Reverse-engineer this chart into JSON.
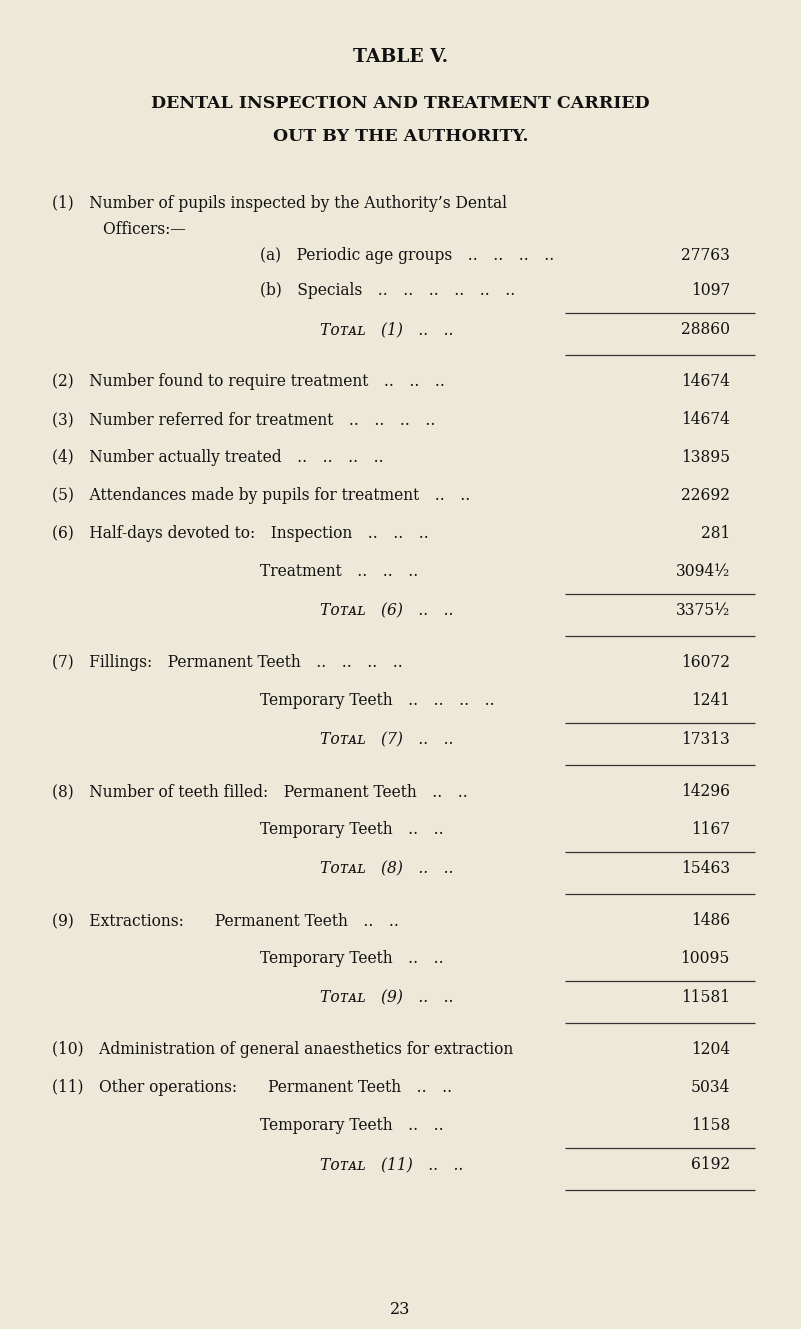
{
  "bg_color": "#ede8d8",
  "title1": "TABLE V.",
  "title2": "DENTAL INSPECTION AND TREATMENT CARRIED",
  "title3": "OUT BY THE AUTHORITY.",
  "page_number": "23",
  "rows": [
    {
      "type": "text2",
      "label": "(1) Number of pupils inspected by the Authority’s Dental",
      "value": "",
      "line_before": false,
      "line_after": false
    },
    {
      "type": "text2b",
      "label": "  Officers:—",
      "value": "",
      "line_before": false,
      "line_after": false
    },
    {
      "type": "text3",
      "label": "(a) Periodic age groups .. .. .. ..",
      "value": "27763",
      "line_before": false,
      "line_after": false
    },
    {
      "type": "text3",
      "label": "(b) Specials .. .. .. .. .. ..",
      "value": "1097",
      "line_before": false,
      "line_after": true
    },
    {
      "type": "total",
      "label": "Tᴏᴛᴀʟ (1) .. ..",
      "value": "28860",
      "line_before": false,
      "line_after": true
    },
    {
      "type": "text1",
      "label": "(2) Number found to require treatment .. .. ..",
      "value": "14674",
      "line_before": false,
      "line_after": false
    },
    {
      "type": "text1",
      "label": "(3) Number referred for treatment .. .. .. ..",
      "value": "14674",
      "line_before": false,
      "line_after": false
    },
    {
      "type": "text1",
      "label": "(4) Number actually treated .. .. .. ..",
      "value": "13895",
      "line_before": false,
      "line_after": false
    },
    {
      "type": "text1",
      "label": "(5) Attendances made by pupils for treatment .. ..",
      "value": "22692",
      "line_before": false,
      "line_after": false
    },
    {
      "type": "text1",
      "label": "(6) Half-days devoted to: Inspection .. .. ..",
      "value": "281",
      "line_before": false,
      "line_after": false
    },
    {
      "type": "text3",
      "label": "Treatment .. .. ..",
      "value": "3094½",
      "line_before": false,
      "line_after": true
    },
    {
      "type": "total",
      "label": "Tᴏᴛᴀʟ (6) .. ..",
      "value": "3375½",
      "line_before": false,
      "line_after": true
    },
    {
      "type": "text1",
      "label": "(7) Fillings: Permanent Teeth .. .. .. ..",
      "value": "16072",
      "line_before": false,
      "line_after": false
    },
    {
      "type": "text3",
      "label": "Temporary Teeth .. .. .. ..",
      "value": "1241",
      "line_before": false,
      "line_after": true
    },
    {
      "type": "total",
      "label": "Tᴏᴛᴀʟ (7) .. ..",
      "value": "17313",
      "line_before": false,
      "line_after": true
    },
    {
      "type": "text1",
      "label": "(8) Number of teeth filled: Permanent Teeth .. ..",
      "value": "14296",
      "line_before": false,
      "line_after": false
    },
    {
      "type": "text3",
      "label": "Temporary Teeth .. ..",
      "value": "1167",
      "line_before": false,
      "line_after": true
    },
    {
      "type": "total",
      "label": "Tᴏᴛᴀʟ (8) .. ..",
      "value": "15463",
      "line_before": false,
      "line_after": true
    },
    {
      "type": "text1",
      "label": "(9) Extractions:  Permanent Teeth .. ..",
      "value": "1486",
      "line_before": false,
      "line_after": false
    },
    {
      "type": "text3",
      "label": "Temporary Teeth .. ..",
      "value": "10095",
      "line_before": false,
      "line_after": true
    },
    {
      "type": "total",
      "label": "Tᴏᴛᴀʟ (9) .. ..",
      "value": "11581",
      "line_before": false,
      "line_after": true
    },
    {
      "type": "text1",
      "label": "(10) Administration of general anaesthetics for extraction",
      "value": "1204",
      "line_before": false,
      "line_after": false
    },
    {
      "type": "text1",
      "label": "(11) Other operations:  Permanent Teeth .. ..",
      "value": "5034",
      "line_before": false,
      "line_after": false
    },
    {
      "type": "text3",
      "label": "Temporary Teeth .. ..",
      "value": "1158",
      "line_before": false,
      "line_after": true
    },
    {
      "type": "total",
      "label": "Tᴏᴛᴀʟ (11) .. ..",
      "value": "6192",
      "line_before": false,
      "line_after": true
    }
  ]
}
